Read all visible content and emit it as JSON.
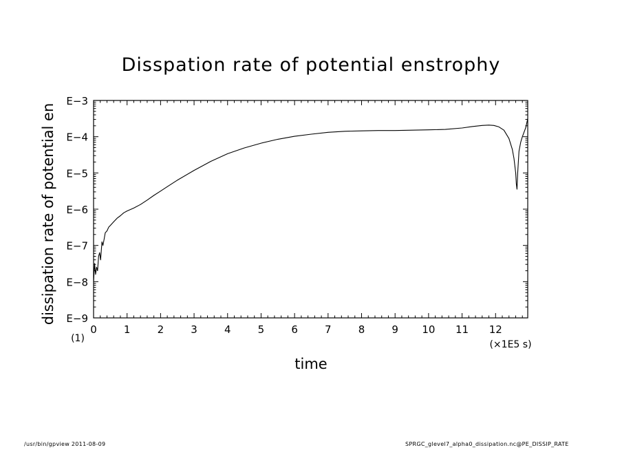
{
  "chart_data": {
    "type": "line",
    "title": "Disspation rate of potential enstrophy",
    "xlabel": "time",
    "ylabel": "dissipation rate of potential en",
    "x_unit_label": "(×1E5 s)",
    "y_unit_label": "(1)",
    "xlim": [
      0,
      12.96
    ],
    "ylim_exponent": [
      -9,
      -3
    ],
    "y_scale": "log",
    "x_ticks": [
      0,
      1,
      2,
      3,
      4,
      5,
      6,
      7,
      8,
      9,
      10,
      11,
      12
    ],
    "x_tick_labels": [
      "0",
      "1",
      "2",
      "3",
      "4",
      "5",
      "6",
      "7",
      "8",
      "9",
      "10",
      "11",
      "12"
    ],
    "y_ticks": [
      -9,
      -8,
      -7,
      -6,
      -5,
      -4,
      -3
    ],
    "y_tick_labels": [
      "E−9",
      "E−8",
      "E−7",
      "E−6",
      "E−5",
      "E−4",
      "E−3"
    ],
    "grid": false,
    "series": [
      {
        "x": [
          0.0,
          0.03,
          0.06,
          0.09,
          0.12,
          0.15,
          0.18,
          0.21,
          0.25,
          0.28,
          0.31,
          0.35,
          0.4,
          0.45,
          0.5,
          0.6,
          0.7,
          0.8,
          0.9,
          1.0,
          1.2,
          1.4,
          1.6,
          1.8,
          2.0,
          2.2,
          2.5,
          3.0,
          3.5,
          4.0,
          4.5,
          5.0,
          5.5,
          6.0,
          6.5,
          7.0,
          7.5,
          8.0,
          8.5,
          9.0,
          9.5,
          10.0,
          10.5,
          11.0,
          11.3,
          11.6,
          11.8,
          11.95,
          12.1,
          12.25,
          12.4,
          12.5,
          12.55,
          12.6,
          12.62,
          12.64,
          12.66,
          12.7,
          12.75,
          12.8,
          12.9,
          12.96
        ],
        "y": [
          -8.0,
          -7.5,
          -7.8,
          -7.6,
          -7.7,
          -7.3,
          -7.2,
          -7.4,
          -6.9,
          -7.0,
          -6.85,
          -6.65,
          -6.6,
          -6.5,
          -6.45,
          -6.35,
          -6.25,
          -6.18,
          -6.1,
          -6.05,
          -5.97,
          -5.87,
          -5.75,
          -5.62,
          -5.5,
          -5.38,
          -5.2,
          -4.93,
          -4.68,
          -4.47,
          -4.31,
          -4.18,
          -4.07,
          -3.99,
          -3.93,
          -3.88,
          -3.85,
          -3.84,
          -3.83,
          -3.83,
          -3.82,
          -3.81,
          -3.8,
          -3.76,
          -3.72,
          -3.69,
          -3.68,
          -3.69,
          -3.73,
          -3.82,
          -4.05,
          -4.35,
          -4.6,
          -5.0,
          -5.3,
          -5.45,
          -5.0,
          -4.4,
          -4.15,
          -4.0,
          -3.75,
          -3.5
        ]
      }
    ]
  },
  "footer": {
    "left": "/usr/bin/gpview   2011-08-09",
    "right": "SPRGC_glevel7_alpha0_dissipation.nc@PE_DISSIP_RATE"
  }
}
